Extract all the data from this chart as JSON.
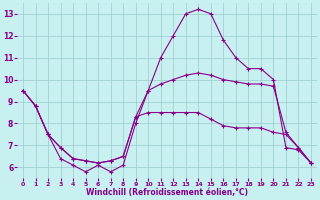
{
  "xlabel": "Windchill (Refroidissement éolien,°C)",
  "background_color": "#c8f0f0",
  "line_color": "#880088",
  "grid_color": "#99cccc",
  "xlim": [
    -0.5,
    23.5
  ],
  "ylim": [
    5.5,
    13.5
  ],
  "yticks": [
    6,
    7,
    8,
    9,
    10,
    11,
    12,
    13
  ],
  "xticks": [
    0,
    1,
    2,
    3,
    4,
    5,
    6,
    7,
    8,
    9,
    10,
    11,
    12,
    13,
    14,
    15,
    16,
    17,
    18,
    19,
    20,
    21,
    22,
    23
  ],
  "line1_x": [
    0,
    1,
    2,
    3,
    4,
    5,
    6,
    7,
    8,
    9,
    10,
    11,
    12,
    13,
    14,
    15,
    16,
    17,
    18,
    19,
    20,
    21,
    22,
    23
  ],
  "line1_y": [
    9.5,
    8.8,
    7.5,
    6.4,
    6.1,
    5.8,
    6.1,
    5.8,
    6.1,
    8.0,
    9.5,
    11.0,
    12.0,
    13.0,
    13.2,
    13.0,
    11.8,
    11.0,
    10.5,
    10.5,
    10.0,
    6.9,
    6.8,
    6.2
  ],
  "line2_x": [
    0,
    1,
    2,
    3,
    4,
    5,
    6,
    7,
    8,
    9,
    10,
    11,
    12,
    13,
    14,
    15,
    16,
    17,
    18,
    19,
    20,
    21,
    22,
    23
  ],
  "line2_y": [
    9.5,
    8.8,
    7.5,
    6.9,
    6.4,
    6.3,
    6.2,
    6.3,
    6.5,
    8.3,
    8.5,
    8.5,
    8.5,
    8.5,
    8.5,
    8.2,
    7.9,
    7.8,
    7.8,
    7.8,
    7.6,
    7.5,
    6.9,
    6.2
  ],
  "line3_x": [
    0,
    1,
    2,
    3,
    4,
    5,
    6,
    7,
    8,
    9,
    10,
    11,
    12,
    13,
    14,
    15,
    16,
    17,
    18,
    19,
    20,
    21,
    22,
    23
  ],
  "line3_y": [
    9.5,
    8.8,
    7.5,
    6.9,
    6.4,
    6.3,
    6.2,
    6.3,
    6.5,
    8.3,
    9.5,
    9.8,
    10.0,
    10.2,
    10.3,
    10.2,
    10.0,
    9.9,
    9.8,
    9.8,
    9.7,
    7.6,
    6.9,
    6.2
  ]
}
